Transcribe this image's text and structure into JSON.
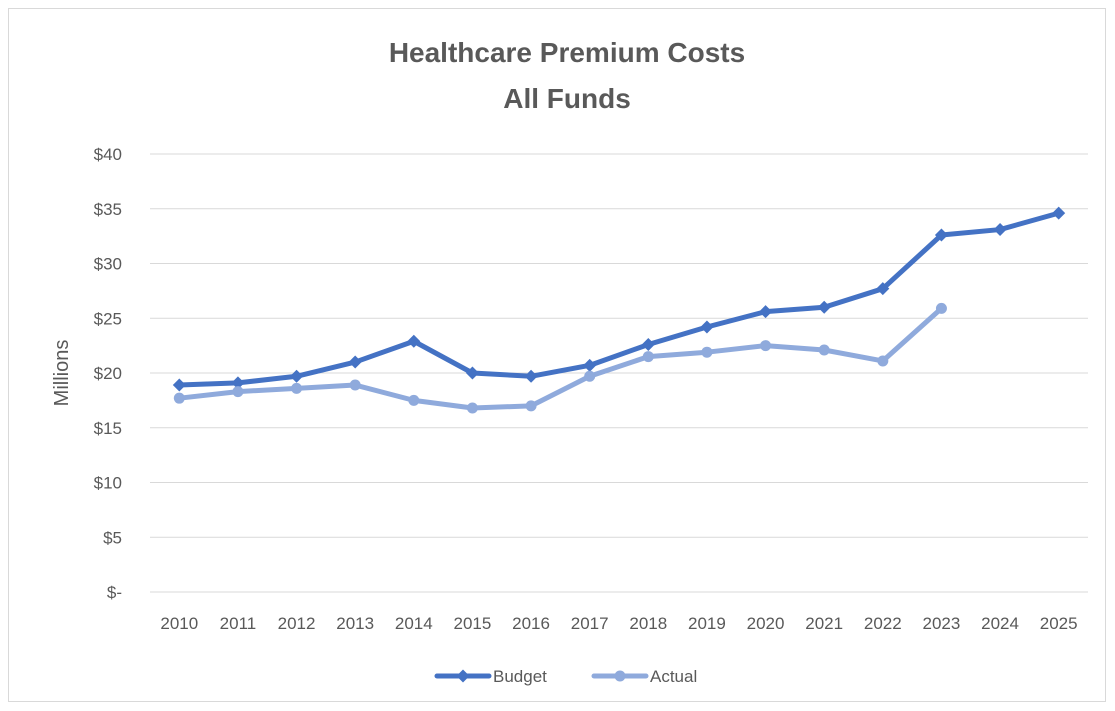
{
  "chart_data": {
    "type": "line",
    "title": [
      "Healthcare Premium Costs",
      "All Funds"
    ],
    "ylabel": "Millions",
    "xlabel": "",
    "ylim": [
      0,
      40
    ],
    "ytick_values": [
      0,
      5,
      10,
      15,
      20,
      25,
      30,
      35,
      40
    ],
    "ytick_labels": [
      "$-",
      "$5",
      "$10",
      "$15",
      "$20",
      "$25",
      "$30",
      "$35",
      "$40"
    ],
    "categories": [
      "2010",
      "2011",
      "2012",
      "2013",
      "2014",
      "2015",
      "2016",
      "2017",
      "2018",
      "2019",
      "2020",
      "2021",
      "2022",
      "2023",
      "2024",
      "2025"
    ],
    "grid": true,
    "legend_position": "bottom",
    "series": [
      {
        "name": "Budget",
        "color": "#4472C4",
        "marker": "diamond",
        "values": [
          18.9,
          19.1,
          19.7,
          21.0,
          22.9,
          20.0,
          19.7,
          20.7,
          22.6,
          24.2,
          25.6,
          26.0,
          27.7,
          32.6,
          33.1,
          34.6
        ]
      },
      {
        "name": "Actual",
        "color": "#8FAADC",
        "marker": "circle",
        "values": [
          17.7,
          18.3,
          18.6,
          18.9,
          17.5,
          16.8,
          17.0,
          19.7,
          21.5,
          21.9,
          22.5,
          22.1,
          21.1,
          25.9,
          null,
          null
        ]
      }
    ]
  }
}
